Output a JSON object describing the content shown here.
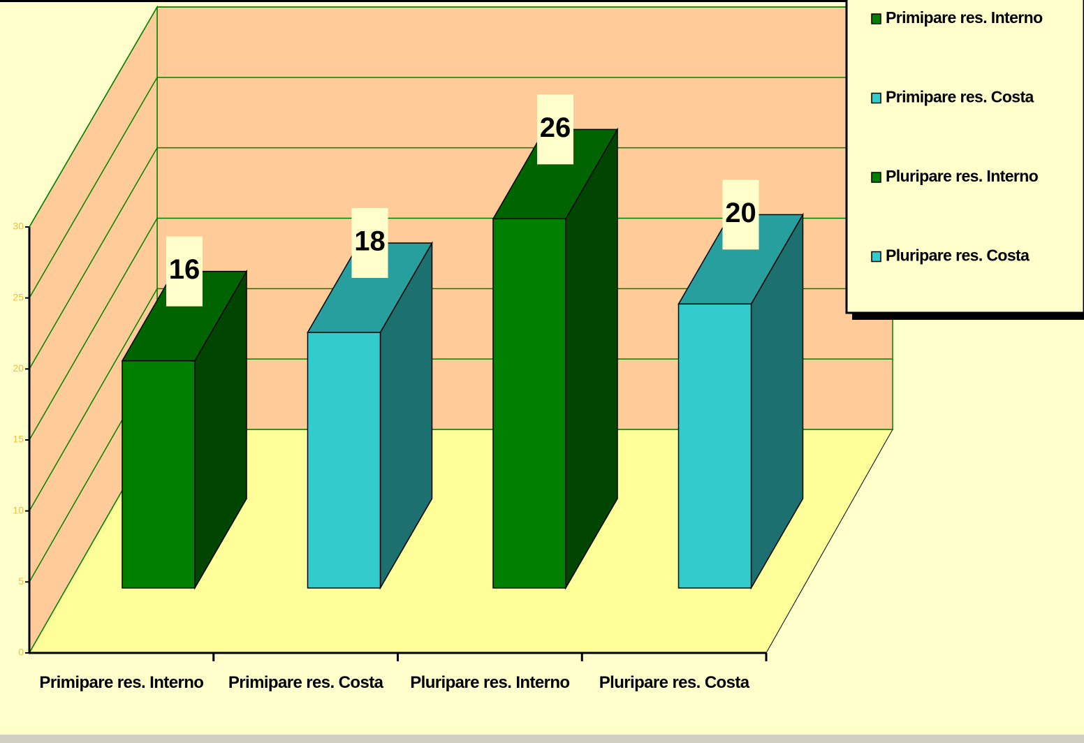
{
  "chart_data": {
    "type": "bar3d",
    "categories": [
      "Primipare res. Interno",
      "Primipare res. Costa",
      "Pluripare res. Interno",
      "Pluripare res. Costa"
    ],
    "series": [
      {
        "name": "Primipare res. Interno",
        "color": "#008000",
        "values": [
          16,
          null,
          null,
          null
        ]
      },
      {
        "name": "Primipare res. Costa",
        "color": "#33cccc",
        "values": [
          null,
          18,
          null,
          null
        ]
      },
      {
        "name": "Pluripare res. Interno",
        "color": "#008000",
        "values": [
          null,
          null,
          26,
          null
        ]
      },
      {
        "name": "Pluripare res. Costa",
        "color": "#33cccc",
        "values": [
          null,
          null,
          null,
          20
        ]
      }
    ],
    "ylim": [
      0,
      30
    ],
    "yticks": [
      0,
      5,
      10,
      15,
      20,
      25,
      30
    ],
    "grid": true,
    "legend": "top-right"
  }
}
